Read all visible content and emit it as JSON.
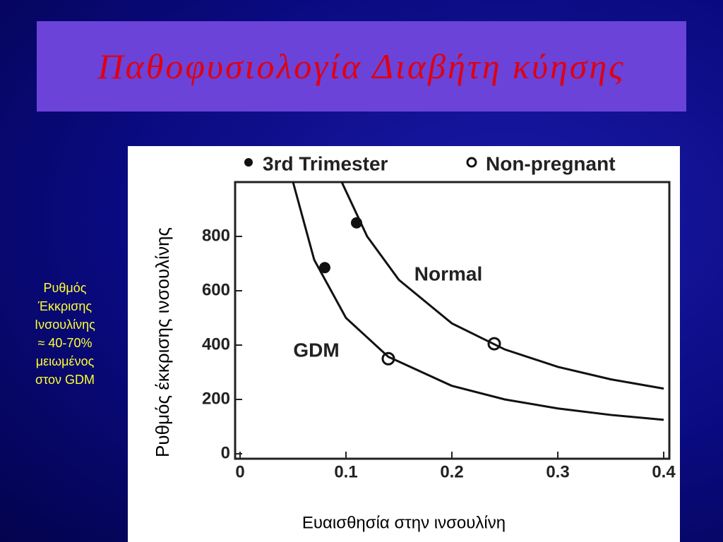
{
  "slide_title": "Παθοφυσιολογία Διαβήτη κύησης",
  "side_note": [
    "Ρυθμός",
    "Έκκρισης",
    "Ινσουλίνης",
    "≈ 40-70%",
    "μειωμένος",
    "στον GDM"
  ],
  "chart_data": {
    "type": "scatter",
    "x_label": "Ευαισθησία στην ινσουλίνη",
    "y_label": "Ρυθμός έκκρισης ινσουλίνης",
    "xlim": [
      0,
      0.4
    ],
    "ylim": [
      0,
      1000
    ],
    "xticks": [
      0,
      0.1,
      0.2,
      0.3,
      0.4
    ],
    "yticks": [
      0,
      200,
      400,
      600,
      800
    ],
    "series": [
      {
        "name": "3rd Trimester",
        "marker": "filled",
        "color": "#111111",
        "x": [
          0.08,
          0.11
        ],
        "values": [
          685,
          850
        ]
      },
      {
        "name": "Non-pregnant",
        "marker": "open",
        "color": "#111111",
        "x": [
          0.14,
          0.24
        ],
        "values": [
          350,
          405
        ]
      }
    ],
    "curves": [
      {
        "name": "Normal",
        "color": "#111111",
        "x": [
          0.096,
          0.12,
          0.15,
          0.2,
          0.25,
          0.3,
          0.35,
          0.4
        ],
        "values": [
          1000,
          800,
          640,
          480,
          384,
          320,
          274,
          240
        ]
      },
      {
        "name": "GDM",
        "color": "#111111",
        "x": [
          0.05,
          0.07,
          0.1,
          0.14,
          0.2,
          0.25,
          0.3,
          0.35,
          0.4
        ],
        "values": [
          1000,
          714,
          500,
          357,
          250,
          200,
          167,
          143,
          125
        ]
      }
    ]
  }
}
